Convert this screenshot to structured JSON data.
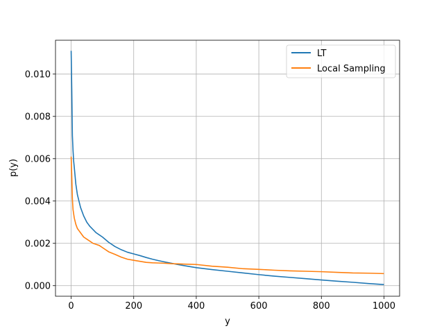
{
  "chart_data": {
    "type": "line",
    "title": "",
    "xlabel": "y",
    "ylabel": "p(y)",
    "xlim": [
      -50,
      1050
    ],
    "ylim": [
      -0.0005,
      0.0116
    ],
    "xticks": [
      0,
      200,
      400,
      600,
      800,
      1000
    ],
    "xtick_labels": [
      "0",
      "200",
      "400",
      "600",
      "800",
      "1000"
    ],
    "yticks": [
      0.0,
      0.002,
      0.004,
      0.006,
      0.008,
      0.01
    ],
    "ytick_labels": [
      "0.000",
      "0.002",
      "0.004",
      "0.006",
      "0.008",
      "0.010"
    ],
    "grid": true,
    "legend_position": "top-right",
    "series": [
      {
        "name": "LT",
        "color": "#1f77b4",
        "x": [
          0,
          2,
          4,
          6,
          8,
          10,
          15,
          20,
          25,
          30,
          40,
          50,
          60,
          70,
          80,
          90,
          100,
          120,
          140,
          160,
          180,
          200,
          220,
          240,
          260,
          280,
          300,
          320,
          340,
          360,
          380,
          400,
          450,
          500,
          550,
          600,
          650,
          700,
          750,
          800,
          850,
          900,
          950,
          1000
        ],
        "values": [
          0.0111,
          0.0093,
          0.0071,
          0.0064,
          0.0059,
          0.0056,
          0.0048,
          0.0043,
          0.004,
          0.0037,
          0.0033,
          0.003,
          0.0028,
          0.00265,
          0.0025,
          0.0024,
          0.0023,
          0.00205,
          0.00185,
          0.0017,
          0.00158,
          0.0015,
          0.00142,
          0.00133,
          0.00125,
          0.00118,
          0.00112,
          0.00106,
          0.001,
          0.00095,
          0.0009,
          0.00085,
          0.00076,
          0.00068,
          0.0006,
          0.00052,
          0.00045,
          0.00039,
          0.00033,
          0.00027,
          0.00021,
          0.00016,
          0.0001,
          5e-05
        ]
      },
      {
        "name": "Local Sampling",
        "color": "#ff7f0e",
        "x": [
          0,
          2,
          4,
          6,
          8,
          10,
          15,
          20,
          25,
          30,
          40,
          50,
          60,
          70,
          80,
          90,
          100,
          120,
          140,
          160,
          180,
          200,
          220,
          240,
          260,
          280,
          300,
          320,
          340,
          360,
          380,
          400,
          450,
          500,
          550,
          600,
          650,
          700,
          750,
          800,
          850,
          900,
          950,
          1000
        ],
        "values": [
          0.0061,
          0.0052,
          0.0041,
          0.0036,
          0.0034,
          0.0032,
          0.0029,
          0.0027,
          0.0026,
          0.0025,
          0.0023,
          0.0022,
          0.0021,
          0.002,
          0.00195,
          0.0019,
          0.0018,
          0.0016,
          0.00148,
          0.00135,
          0.00125,
          0.0012,
          0.00115,
          0.0011,
          0.00108,
          0.00107,
          0.00106,
          0.00104,
          0.00103,
          0.00102,
          0.00101,
          0.001,
          0.00092,
          0.00087,
          0.0008,
          0.00077,
          0.00073,
          0.0007,
          0.00068,
          0.00066,
          0.00063,
          0.0006,
          0.00059,
          0.00057
        ]
      }
    ]
  }
}
